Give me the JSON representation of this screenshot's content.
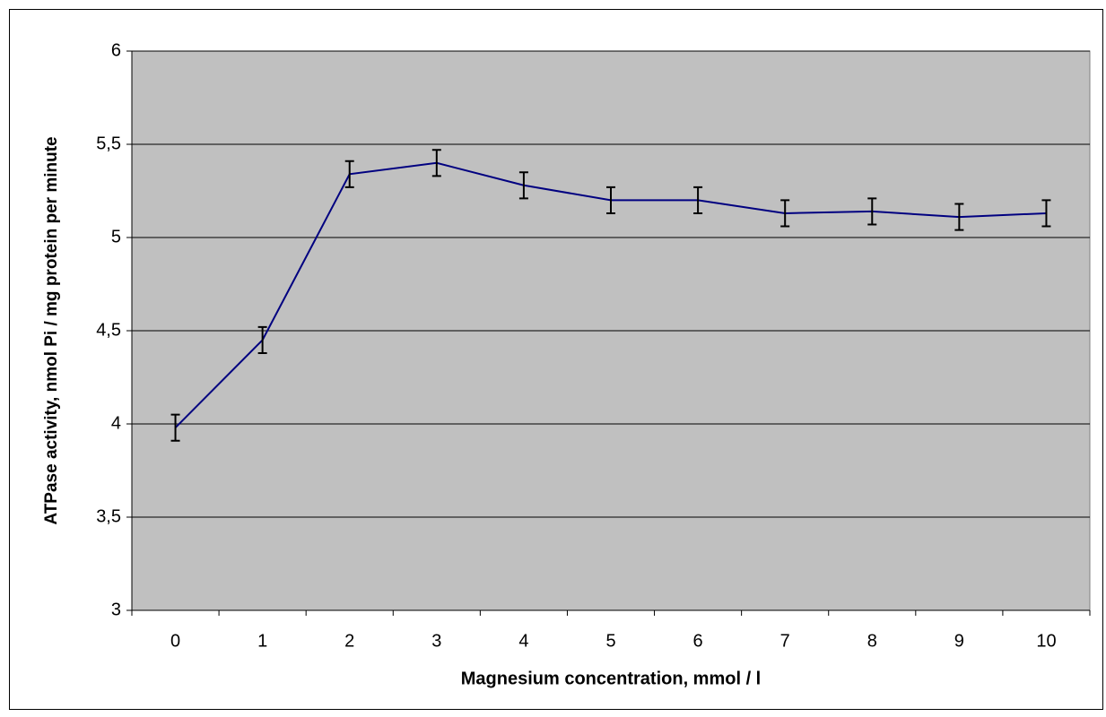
{
  "chart_data": {
    "type": "line",
    "xlabel": "Magnesium concentration, mmol / l",
    "ylabel": "ATPase activity, nmol Pi / mg protein per minute",
    "categories": [
      "0",
      "1",
      "2",
      "3",
      "4",
      "5",
      "6",
      "7",
      "8",
      "9",
      "10"
    ],
    "values": [
      3.98,
      4.45,
      5.34,
      5.4,
      5.28,
      5.2,
      5.2,
      5.13,
      5.14,
      5.11,
      5.13
    ],
    "errors": [
      0.07,
      0.07,
      0.07,
      0.07,
      0.07,
      0.07,
      0.07,
      0.07,
      0.07,
      0.07,
      0.07
    ],
    "color": "#000080",
    "background": "#c0c0c0",
    "ylim": [
      3,
      6
    ],
    "yticks": [
      3,
      {
        "value": 3.5,
        "label": "3,5"
      },
      4,
      {
        "value": 4.5,
        "label": "4,5"
      },
      5,
      {
        "value": 5.5,
        "label": "5,5"
      },
      6
    ],
    "grid": true
  }
}
